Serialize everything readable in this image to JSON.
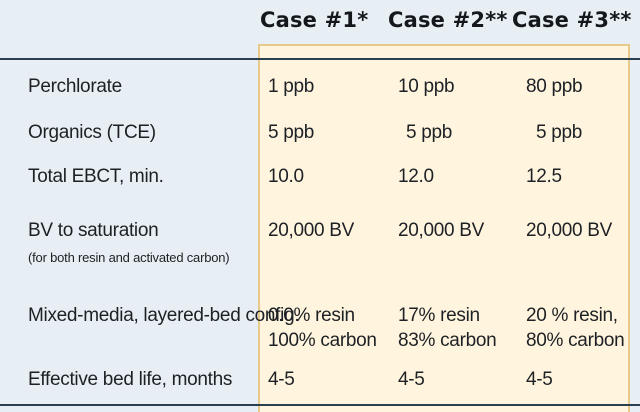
{
  "header": {
    "columns": [
      "Case #1*",
      "Case #2**",
      "Case #3**"
    ]
  },
  "rows": [
    {
      "label": "Perchlorate",
      "values": [
        "1 ppb",
        "10 ppb",
        "80 ppb"
      ]
    },
    {
      "label": "Organics (TCE)",
      "values": [
        "5 ppb",
        "5 ppb",
        "5 ppb"
      ]
    },
    {
      "label": "Total EBCT, min.",
      "values": [
        "10.0",
        "12.0",
        "12.5"
      ]
    },
    {
      "label": "BV to saturation",
      "note": "(for both resin and activated carbon)",
      "values": [
        "20,000 BV",
        "20,000 BV",
        "20,000 BV"
      ]
    },
    {
      "label": "Mixed-media, layered-bed config.",
      "values": [
        [
          "0.0% resin",
          "100% carbon"
        ],
        [
          "17% resin",
          "83% carbon"
        ],
        [
          "20 % resin,",
          "80% carbon"
        ]
      ]
    },
    {
      "label": "Effective bed life, months",
      "values": [
        "4-5",
        "4-5",
        "4-5"
      ]
    }
  ],
  "colors": {
    "background": "#e7eef4",
    "panel": "#fff4dd",
    "panel_border": "#e8c98c",
    "rule": "#2b3f52"
  }
}
